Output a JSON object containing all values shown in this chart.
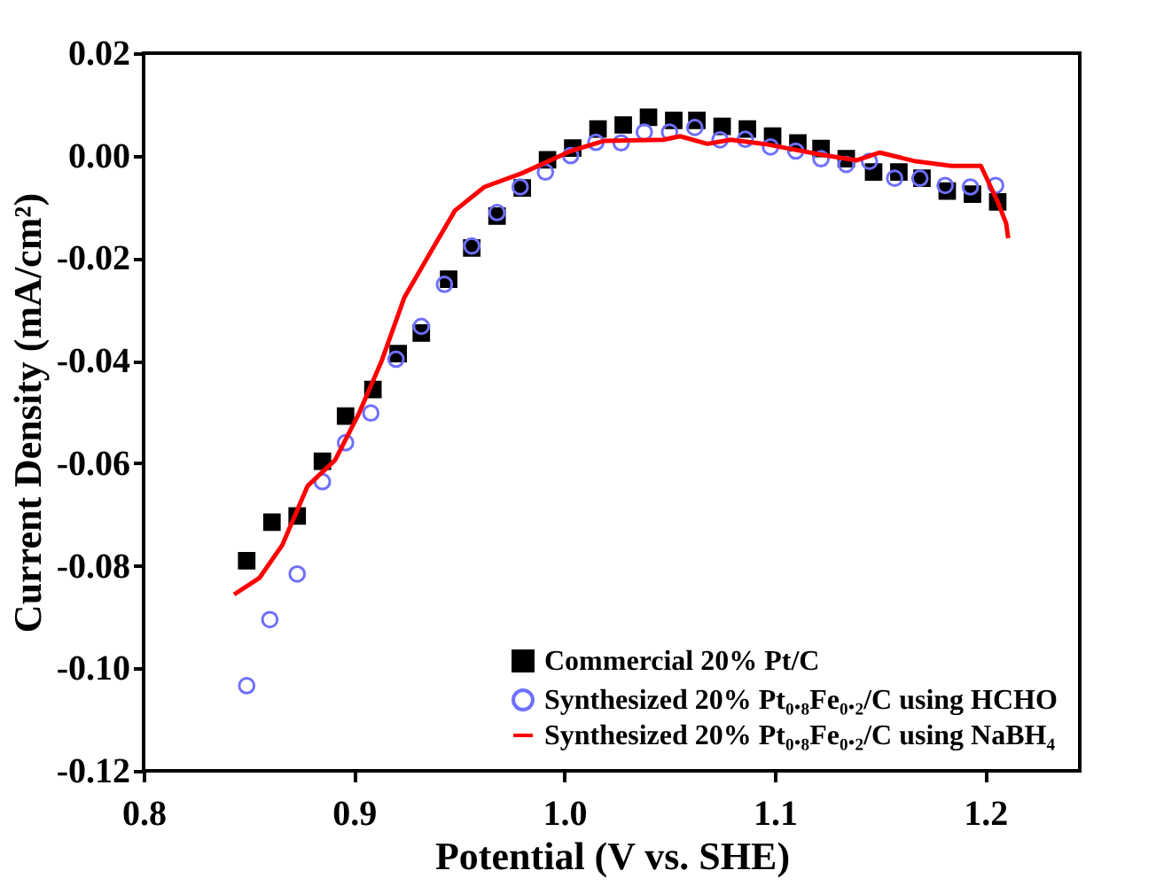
{
  "chart_data": {
    "type": "scatter",
    "xlabel": "Potential (V vs. SHE)",
    "ylabel": "Current Density (mA/cm²)",
    "xlim": [
      0.8,
      1.245
    ],
    "ylim": [
      -0.12,
      0.02
    ],
    "xticks": [
      {
        "value": 0.8,
        "label": "0.8"
      },
      {
        "value": 0.9,
        "label": "0.9"
      },
      {
        "value": 1.0,
        "label": "1.0"
      },
      {
        "value": 1.1,
        "label": "1.1"
      },
      {
        "value": 1.2,
        "label": "1.2"
      }
    ],
    "yticks": [
      {
        "value": 0.02,
        "label": "0.02"
      },
      {
        "value": 0.0,
        "label": "0.00"
      },
      {
        "value": -0.02,
        "label": "-0.02"
      },
      {
        "value": -0.04,
        "label": "-0.04"
      },
      {
        "value": -0.06,
        "label": "-0.06"
      },
      {
        "value": -0.08,
        "label": "-0.08"
      },
      {
        "value": -0.1,
        "label": "-0.10"
      },
      {
        "value": -0.12,
        "label": "-0.12"
      }
    ],
    "grid": false,
    "legend": "bottom right",
    "series": [
      {
        "name": "Commercial 20% Pt/C",
        "marker": "square",
        "color": "#000000",
        "x": [
          0.849,
          0.861,
          0.873,
          0.885,
          0.896,
          0.909,
          0.921,
          0.932,
          0.945,
          0.956,
          0.968,
          0.98,
          0.992,
          1.004,
          1.016,
          1.028,
          1.04,
          1.052,
          1.063,
          1.075,
          1.087,
          1.099,
          1.111,
          1.122,
          1.134,
          1.147,
          1.159,
          1.17,
          1.182,
          1.194,
          1.206
        ],
        "values": [
          -0.079,
          -0.0715,
          -0.0703,
          -0.0596,
          -0.0508,
          -0.0456,
          -0.0386,
          -0.0346,
          -0.0241,
          -0.018,
          -0.0118,
          -0.0063,
          -0.0008,
          0.0015,
          0.0052,
          0.006,
          0.0075,
          0.0069,
          0.0069,
          0.0057,
          0.0052,
          0.0038,
          0.0025,
          0.0014,
          -0.0006,
          -0.0032,
          -0.0032,
          -0.0044,
          -0.0069,
          -0.0075,
          -0.009
        ]
      },
      {
        "name": "Synthesized 20% Pt₀.₈Fe₀.₂/C using HCHO",
        "marker": "circle",
        "color": "#6f6fff",
        "x": [
          0.849,
          0.86,
          0.873,
          0.885,
          0.896,
          0.908,
          0.92,
          0.932,
          0.943,
          0.956,
          0.968,
          0.979,
          0.991,
          1.003,
          1.015,
          1.027,
          1.038,
          1.05,
          1.062,
          1.074,
          1.086,
          1.098,
          1.11,
          1.122,
          1.134,
          1.145,
          1.157,
          1.169,
          1.181,
          1.193,
          1.205
        ],
        "values": [
          -0.1034,
          -0.0905,
          -0.0816,
          -0.0636,
          -0.056,
          -0.0502,
          -0.0397,
          -0.0333,
          -0.0251,
          -0.0176,
          -0.0111,
          -0.0061,
          -0.0032,
          0.0,
          0.0026,
          0.0025,
          0.0046,
          0.0046,
          0.0055,
          0.0031,
          0.0032,
          0.0017,
          0.0009,
          -0.0006,
          -0.0017,
          -0.0011,
          -0.0044,
          -0.0044,
          -0.0058,
          -0.0061,
          -0.0058
        ]
      },
      {
        "name": "Synthesized 20% Pt₀.₈Fe₀.₂/C using NaBH₄",
        "type": "line",
        "marker": "none",
        "line_style": "solid",
        "color": "#ff0000",
        "x": [
          0.843,
          0.855,
          0.866,
          0.878,
          0.891,
          0.902,
          0.913,
          0.924,
          0.937,
          0.948,
          0.962,
          0.98,
          1.003,
          1.019,
          1.047,
          1.055,
          1.068,
          1.079,
          1.095,
          1.122,
          1.139,
          1.15,
          1.167,
          1.184,
          1.198,
          1.206,
          1.21,
          1.211
        ],
        "values": [
          -0.0856,
          -0.0824,
          -0.0759,
          -0.0644,
          -0.0594,
          -0.0506,
          -0.0402,
          -0.0276,
          -0.0184,
          -0.0107,
          -0.0061,
          -0.0034,
          0.0009,
          0.0029,
          0.0031,
          0.0038,
          0.0023,
          0.0031,
          0.0023,
          0.0002,
          -0.0009,
          0.0006,
          -0.0011,
          -0.002,
          -0.002,
          -0.009,
          -0.0132,
          -0.0161
        ]
      }
    ]
  }
}
